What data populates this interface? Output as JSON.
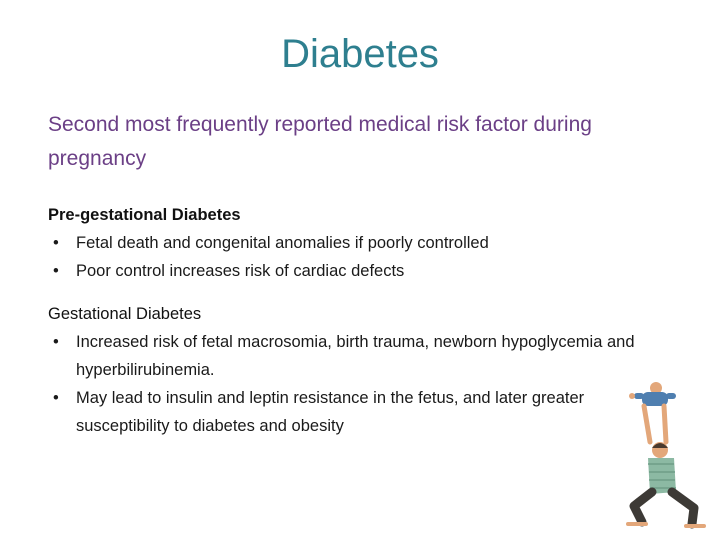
{
  "slide": {
    "title": "Diabetes",
    "subtitle": "Second most frequently reported medical risk factor during pregnancy",
    "sections": [
      {
        "heading": "Pre-gestational Diabetes",
        "bullets": [
          "Fetal death and congenital anomalies if poorly controlled",
          "Poor control increases risk of cardiac defects"
        ]
      },
      {
        "heading": "Gestational Diabetes",
        "bullets": [
          "Increased risk of fetal macrosomia, birth trauma, newborn hypoglycemia and hyperbilirubinemia.",
          "May lead to insulin and leptin resistance in the fetus, and later greater susceptibility to diabetes and obesity"
        ]
      }
    ],
    "bullet_glyph": "•"
  },
  "illustration": {
    "icon": "parent-lifting-baby-icon",
    "colors": {
      "shirt": "#8cb9a3",
      "pants": "#3d3a36",
      "skin": "#e3a77a",
      "baby_outfit": "#4f7fb0"
    }
  }
}
